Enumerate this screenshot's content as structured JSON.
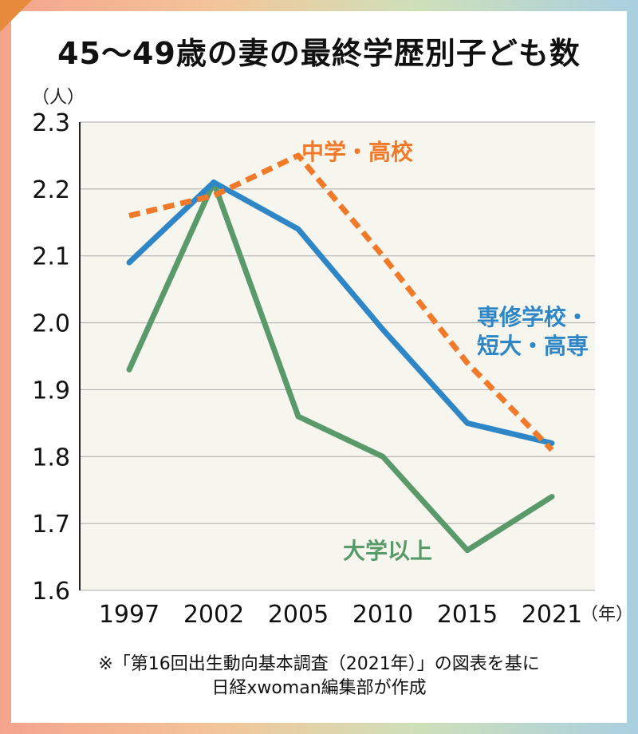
{
  "title": "45〜49歳の妻の最終学歴別子ども数",
  "y_unit": "（人）",
  "x_unit": "（年）",
  "note_line1": "※「第16回出生動向基本調査（2021年）」の図表を基に",
  "note_line2": "日経xwoman編集部が作成",
  "colors": {
    "chugaku_koukou": "#f07a2a",
    "senmon_tandai": "#2f86c7",
    "daigaku": "#5a9a6a",
    "plot_bg": "#f7f6ee",
    "grid": "#a9a9a9"
  },
  "chart_data": {
    "type": "line",
    "x": [
      "1997",
      "2002",
      "2005",
      "2010",
      "2015",
      "2021"
    ],
    "ylim": [
      1.6,
      2.3
    ],
    "yticks": [
      "1.6",
      "1.7",
      "1.8",
      "1.9",
      "2.0",
      "2.1",
      "2.2",
      "2.3"
    ],
    "grid": true,
    "series": [
      {
        "name": "中学・高校",
        "style": "dashed",
        "values": [
          2.16,
          2.19,
          2.25,
          2.1,
          1.94,
          1.81
        ]
      },
      {
        "name_line1": "専修学校・",
        "name_line2": "短大・高専",
        "style": "solid",
        "values": [
          2.09,
          2.21,
          2.14,
          1.99,
          1.85,
          1.82
        ]
      },
      {
        "name": "大学以上",
        "style": "solid",
        "values": [
          1.93,
          2.21,
          1.86,
          1.8,
          1.66,
          1.74
        ]
      }
    ]
  }
}
